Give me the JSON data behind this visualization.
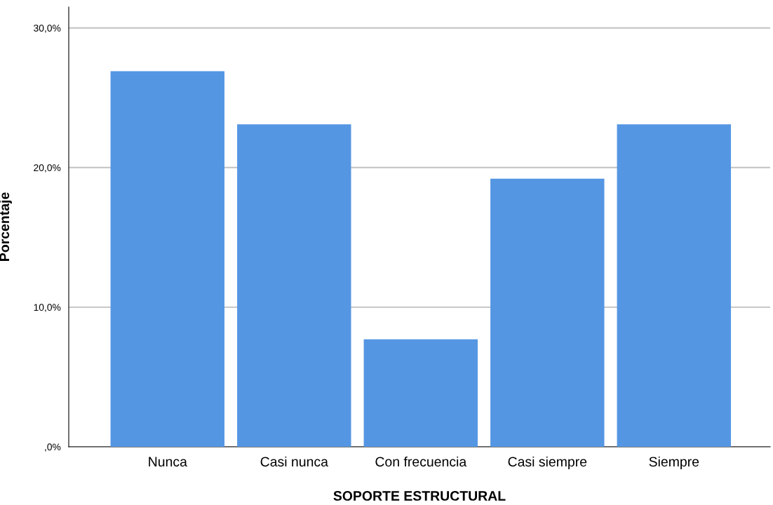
{
  "chart_data": {
    "type": "bar",
    "xlabel": "SOPORTE ESTRUCTURAL",
    "ylabel": "Porcentaje",
    "categories": [
      "Nunca",
      "Casi nunca",
      "Con frecuencia",
      "Casi siempre",
      "Siempre"
    ],
    "values": [
      26.9,
      23.1,
      7.7,
      19.2,
      23.1
    ],
    "color": "#5596e3",
    "ylim": [
      0,
      31.5
    ],
    "yticks": [
      {
        "value": 0,
        "label": ",0%"
      },
      {
        "value": 10,
        "label": "10,0%"
      },
      {
        "value": 20,
        "label": "20,0%"
      },
      {
        "value": 30,
        "label": "30,0%"
      }
    ],
    "grid": "y"
  }
}
